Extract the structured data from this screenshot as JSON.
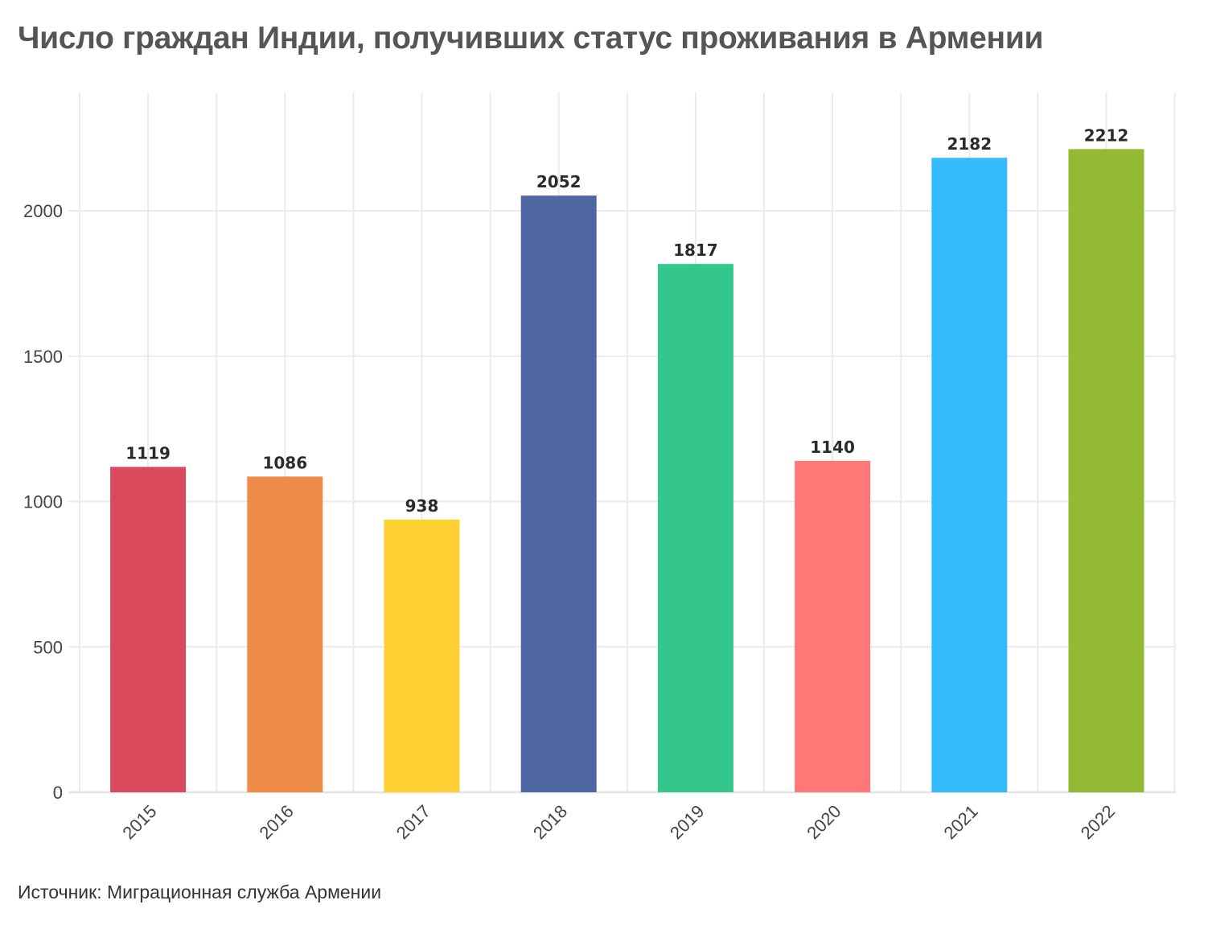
{
  "chart_data": {
    "type": "bar",
    "title": "Число граждан Индии, получивших статус проживания в Армении",
    "source": "Источник: Миграционная служба Армении",
    "xlabel": "",
    "ylabel": "",
    "categories": [
      "2015",
      "2016",
      "2017",
      "2018",
      "2019",
      "2020",
      "2021",
      "2022"
    ],
    "values": [
      1119,
      1086,
      938,
      2052,
      1817,
      1140,
      2182,
      2212
    ],
    "colors": [
      "#d94a5c",
      "#f08c4a",
      "#ffd033",
      "#4f66a4",
      "#33c78e",
      "#ff7878",
      "#33bbfb",
      "#92bb33"
    ],
    "data_labels": [
      "1119",
      "1086",
      "938",
      "2052",
      "1817",
      "1140",
      "2182",
      "2212"
    ],
    "y_ticks": [
      0,
      500,
      1000,
      1500,
      2000
    ],
    "y_tick_labels": [
      "0",
      "500",
      "1000",
      "1500",
      "2000"
    ],
    "ylim": [
      0,
      2400
    ],
    "grid": true,
    "legend": "none"
  }
}
